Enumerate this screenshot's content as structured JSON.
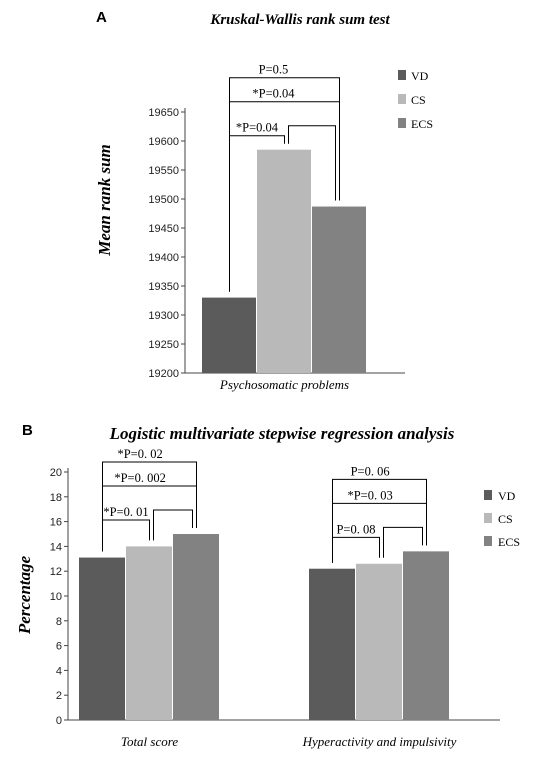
{
  "panels": {
    "a": {
      "letter": "A"
    },
    "b": {
      "letter": "B"
    }
  },
  "colors": {
    "VD": "#5b5b5b",
    "CS": "#b9b9b9",
    "ECS": "#828282"
  },
  "chart_data": [
    {
      "type": "bar",
      "panel": "A",
      "title": "Kruskal-Wallis rank sum test",
      "ylabel": "Mean rank sum",
      "xlabel": "",
      "categories": [
        "Psychosomatic problems"
      ],
      "series": [
        {
          "name": "VD",
          "values": [
            19330
          ]
        },
        {
          "name": "CS",
          "values": [
            19585
          ]
        },
        {
          "name": "ECS",
          "values": [
            19487
          ]
        }
      ],
      "ylim": [
        19200,
        19650
      ],
      "yticks": [
        19200,
        19250,
        19300,
        19350,
        19400,
        19450,
        19500,
        19550,
        19600,
        19650
      ],
      "legend": "right",
      "grid": false,
      "annotations": [
        {
          "category": "Psychosomatic problems",
          "from": "CS",
          "to": "ECS",
          "label": ""
        },
        {
          "category": "Psychosomatic problems",
          "from": "VD",
          "to": "CS",
          "label": "*P=0.04"
        },
        {
          "category": "Psychosomatic problems",
          "from": "VD",
          "to": "ECS",
          "label": "*P=0.04"
        },
        {
          "category": "Psychosomatic problems",
          "from": "VD",
          "to": "ECS",
          "label": "P=0.5"
        }
      ]
    },
    {
      "type": "bar",
      "panel": "B",
      "title": "Logistic multivariate stepwise regression analysis",
      "ylabel": "Percentage",
      "xlabel": "",
      "categories": [
        "Total score",
        "Hyperactivity and impulsivity"
      ],
      "series": [
        {
          "name": "VD",
          "values": [
            13.1,
            12.2
          ]
        },
        {
          "name": "CS",
          "values": [
            14.0,
            12.6
          ]
        },
        {
          "name": "ECS",
          "values": [
            15.0,
            13.6
          ]
        }
      ],
      "ylim": [
        0,
        20
      ],
      "yticks": [
        0,
        2,
        4,
        6,
        8,
        10,
        12,
        14,
        16,
        18,
        20
      ],
      "legend": "right",
      "grid": false,
      "annotations": [
        {
          "category": "Total score",
          "from": "VD",
          "to": "CS",
          "label": "*P=0. 01"
        },
        {
          "category": "Total score",
          "from": "CS",
          "to": "ECS",
          "label": ""
        },
        {
          "category": "Total score",
          "from": "VD",
          "to": "ECS",
          "label": "*P=0. 002"
        },
        {
          "category": "Total score",
          "from": "VD",
          "to": "ECS",
          "label": "*P=0. 02"
        },
        {
          "category": "Hyperactivity and impulsivity",
          "from": "VD",
          "to": "CS",
          "label": "P=0. 08"
        },
        {
          "category": "Hyperactivity and impulsivity",
          "from": "CS",
          "to": "ECS",
          "label": ""
        },
        {
          "category": "Hyperactivity and impulsivity",
          "from": "VD",
          "to": "ECS",
          "label": "*P=0. 03"
        },
        {
          "category": "Hyperactivity and impulsivity",
          "from": "VD",
          "to": "ECS",
          "label": "P=0. 06"
        }
      ]
    }
  ]
}
